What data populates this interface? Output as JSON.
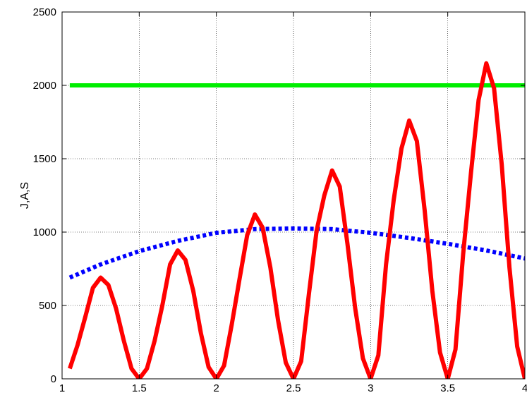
{
  "chart_data": {
    "type": "line",
    "title": "",
    "xlabel": "",
    "ylabel": "J,A,S",
    "xlim": [
      1,
      4
    ],
    "ylim": [
      0,
      2500
    ],
    "grid": true,
    "x_ticks": [
      1,
      1.5,
      2,
      2.5,
      3,
      3.5,
      4
    ],
    "x_tick_labels": [
      "1",
      "1.5",
      "2",
      "2.5",
      "3",
      "3.5",
      "4"
    ],
    "y_ticks": [
      0,
      500,
      1000,
      1500,
      2000,
      2500
    ],
    "y_tick_labels": [
      "0",
      "500",
      "1000",
      "1500",
      "2000",
      "2500"
    ],
    "series": [
      {
        "color": "#00ee00",
        "style": "solid",
        "x": [
          1.05,
          4.0
        ],
        "y": [
          2000,
          2000
        ]
      },
      {
        "color": "#0000ff",
        "style": "dotted",
        "x": [
          1.05,
          1.25,
          1.5,
          1.75,
          2.0,
          2.25,
          2.5,
          2.75,
          3.0,
          3.25,
          3.5,
          3.75,
          4.0
        ],
        "y": [
          690,
          780,
          870,
          940,
          995,
          1020,
          1025,
          1020,
          995,
          960,
          920,
          875,
          820
        ]
      },
      {
        "color": "#ff0000",
        "style": "solid",
        "x": [
          1.05,
          1.1,
          1.15,
          1.2,
          1.25,
          1.3,
          1.35,
          1.4,
          1.45,
          1.5,
          1.55,
          1.6,
          1.65,
          1.7,
          1.75,
          1.8,
          1.85,
          1.9,
          1.95,
          2.0,
          2.05,
          2.1,
          2.15,
          2.2,
          2.25,
          2.3,
          2.35,
          2.4,
          2.45,
          2.5,
          2.55,
          2.6,
          2.65,
          2.7,
          2.75,
          2.8,
          2.85,
          2.9,
          2.95,
          3.0,
          3.05,
          3.1,
          3.15,
          3.2,
          3.25,
          3.3,
          3.35,
          3.4,
          3.45,
          3.5,
          3.55,
          3.6,
          3.65,
          3.7,
          3.75,
          3.8,
          3.85,
          3.9,
          3.95,
          4.0
        ],
        "y": [
          70,
          230,
          420,
          620,
          690,
          640,
          480,
          260,
          70,
          0,
          70,
          260,
          500,
          780,
          875,
          810,
          600,
          310,
          80,
          0,
          90,
          370,
          680,
          980,
          1120,
          1030,
          760,
          400,
          110,
          0,
          120,
          580,
          1010,
          1250,
          1420,
          1310,
          920,
          480,
          140,
          0,
          160,
          780,
          1220,
          1570,
          1760,
          1620,
          1150,
          600,
          180,
          0,
          200,
          850,
          1400,
          1900,
          2150,
          1980,
          1460,
          760,
          220,
          0
        ]
      }
    ]
  }
}
